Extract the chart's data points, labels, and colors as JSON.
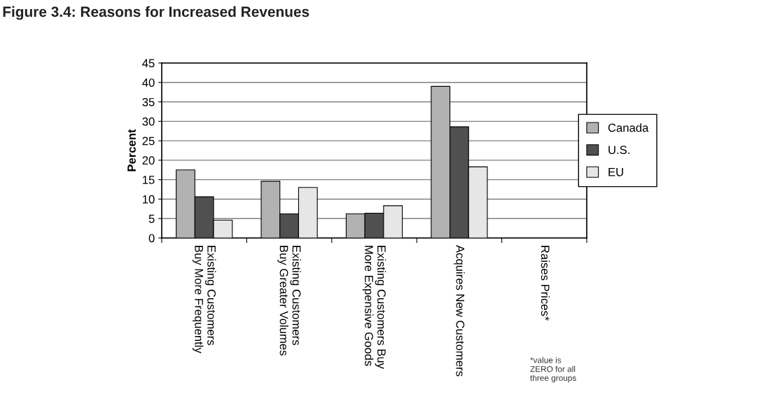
{
  "chart_data": {
    "type": "bar",
    "title": "Figure 3.4: Reasons for Increased Revenues",
    "ylabel": "Percent",
    "categories": [
      "Existing Customers\nBuy More Frequently",
      "Existing Customers\nBuy Greater Volumes",
      "Existing Customers Buy\nMore Expensive Goods",
      "Acquires New Customers",
      "Raises Prices*"
    ],
    "series": [
      {
        "name": "Canada",
        "color": "#b2b2b2",
        "values": [
          17.5,
          14.6,
          6.2,
          39,
          0
        ]
      },
      {
        "name": "U.S.",
        "color": "#505050",
        "values": [
          10.6,
          6.2,
          6.4,
          28.6,
          0
        ]
      },
      {
        "name": "EU",
        "color": "#e6e6e6",
        "values": [
          4.6,
          13,
          8.3,
          18.3,
          0
        ]
      }
    ],
    "ylim": [
      0,
      45
    ],
    "yticks": [
      0,
      5,
      10,
      15,
      20,
      25,
      30,
      35,
      40,
      45
    ],
    "grid": "y",
    "legend": "right",
    "annotations": [
      "*value is\nZERO for all\nthree groups"
    ]
  }
}
